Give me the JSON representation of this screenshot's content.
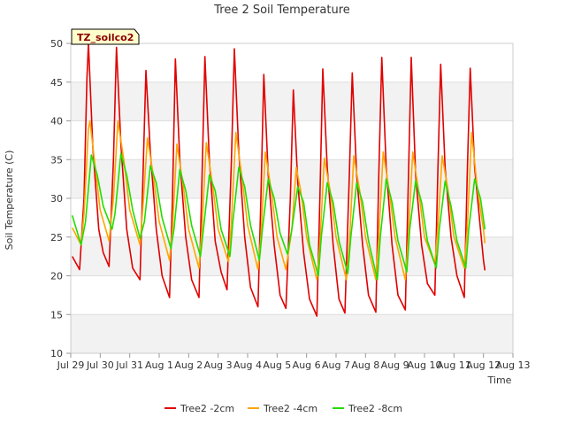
{
  "chart_data": {
    "type": "line",
    "title": "Tree 2 Soil Temperature",
    "xlabel": "Time",
    "ylabel": "Soil Temperature (C)",
    "ylim": [
      10,
      50
    ],
    "yticks": [
      10,
      15,
      20,
      25,
      30,
      35,
      40,
      45,
      50
    ],
    "x_tick_labels": [
      "Jul 29",
      "Jul 30",
      "Jul 31",
      "Aug 1",
      "Aug 2",
      "Aug 3",
      "Aug 4",
      "Aug 5",
      "Aug 6",
      "Aug 7",
      "Aug 8",
      "Aug 9",
      "Aug 10",
      "Aug 11",
      "Aug 12",
      "Aug 13"
    ],
    "x_range_days": [
      0,
      15
    ],
    "grid": "horizontal alternating bands",
    "annotation": "TZ_soilco2",
    "legend_position": "bottom-center",
    "series": [
      {
        "name": "Tree2 -2cm",
        "color": "#e00000",
        "points": [
          [
            0.05,
            22.5
          ],
          [
            0.3,
            20.8
          ],
          [
            0.45,
            30
          ],
          [
            0.55,
            45.5
          ],
          [
            0.6,
            50
          ],
          [
            0.75,
            36.5
          ],
          [
            0.95,
            26
          ],
          [
            1.1,
            23
          ],
          [
            1.3,
            21.2
          ],
          [
            1.45,
            35
          ],
          [
            1.55,
            49.5
          ],
          [
            1.7,
            37
          ],
          [
            1.9,
            26
          ],
          [
            2.1,
            21
          ],
          [
            2.35,
            19.5
          ],
          [
            2.45,
            33
          ],
          [
            2.55,
            46.5
          ],
          [
            2.7,
            36
          ],
          [
            2.9,
            26
          ],
          [
            3.1,
            20
          ],
          [
            3.35,
            17.2
          ],
          [
            3.45,
            30
          ],
          [
            3.55,
            48
          ],
          [
            3.7,
            35
          ],
          [
            3.9,
            25
          ],
          [
            4.1,
            19.5
          ],
          [
            4.35,
            17.2
          ],
          [
            4.45,
            32
          ],
          [
            4.55,
            48.3
          ],
          [
            4.7,
            35
          ],
          [
            4.9,
            24.5
          ],
          [
            5.1,
            20.5
          ],
          [
            5.3,
            18.2
          ],
          [
            5.45,
            35
          ],
          [
            5.55,
            49.3
          ],
          [
            5.7,
            36
          ],
          [
            5.9,
            25
          ],
          [
            6.1,
            18.5
          ],
          [
            6.35,
            16
          ],
          [
            6.45,
            30
          ],
          [
            6.55,
            46
          ],
          [
            6.7,
            33
          ],
          [
            6.9,
            24
          ],
          [
            7.1,
            17.5
          ],
          [
            7.3,
            15.8
          ],
          [
            7.45,
            30
          ],
          [
            7.55,
            44
          ],
          [
            7.7,
            32
          ],
          [
            7.9,
            23
          ],
          [
            8.1,
            17
          ],
          [
            8.35,
            14.8
          ],
          [
            8.45,
            30
          ],
          [
            8.55,
            46.7
          ],
          [
            8.7,
            34
          ],
          [
            8.9,
            24
          ],
          [
            9.1,
            17
          ],
          [
            9.3,
            15.2
          ],
          [
            9.45,
            33
          ],
          [
            9.55,
            46.2
          ],
          [
            9.7,
            33
          ],
          [
            9.9,
            24
          ],
          [
            10.1,
            17.5
          ],
          [
            10.35,
            15.3
          ],
          [
            10.45,
            33
          ],
          [
            10.55,
            48.2
          ],
          [
            10.7,
            34
          ],
          [
            10.9,
            24
          ],
          [
            11.1,
            17.5
          ],
          [
            11.35,
            15.6
          ],
          [
            11.45,
            32
          ],
          [
            11.55,
            48.2
          ],
          [
            11.7,
            33
          ],
          [
            11.9,
            24
          ],
          [
            12.1,
            19
          ],
          [
            12.35,
            17.5
          ],
          [
            12.45,
            33
          ],
          [
            12.55,
            47.3
          ],
          [
            12.7,
            34
          ],
          [
            12.9,
            25
          ],
          [
            13.1,
            20
          ],
          [
            13.35,
            17.2
          ],
          [
            13.45,
            33
          ],
          [
            13.55,
            46.8
          ],
          [
            13.7,
            34
          ],
          [
            13.9,
            26
          ],
          [
            14.0,
            22
          ],
          [
            14.05,
            20.7
          ]
        ]
      },
      {
        "name": "Tree2 -4cm",
        "color": "#ffa500",
        "points": [
          [
            0.05,
            26.2
          ],
          [
            0.35,
            24
          ],
          [
            0.45,
            28
          ],
          [
            0.6,
            39
          ],
          [
            0.65,
            40
          ],
          [
            0.8,
            35
          ],
          [
            1.0,
            28.5
          ],
          [
            1.3,
            24.5
          ],
          [
            1.45,
            30
          ],
          [
            1.6,
            40
          ],
          [
            1.8,
            35
          ],
          [
            2.0,
            28.5
          ],
          [
            2.35,
            24
          ],
          [
            2.45,
            29
          ],
          [
            2.6,
            37.8
          ],
          [
            2.8,
            33
          ],
          [
            3.0,
            27
          ],
          [
            3.35,
            22
          ],
          [
            3.45,
            26
          ],
          [
            3.6,
            37
          ],
          [
            3.8,
            32
          ],
          [
            4.0,
            26
          ],
          [
            4.35,
            21
          ],
          [
            4.45,
            26
          ],
          [
            4.6,
            37.2
          ],
          [
            4.8,
            32
          ],
          [
            5.0,
            26
          ],
          [
            5.35,
            21.8
          ],
          [
            5.45,
            27
          ],
          [
            5.6,
            38.5
          ],
          [
            5.8,
            33
          ],
          [
            6.0,
            26.5
          ],
          [
            6.35,
            20.8
          ],
          [
            6.45,
            25
          ],
          [
            6.6,
            36
          ],
          [
            6.8,
            31
          ],
          [
            7.0,
            25
          ],
          [
            7.3,
            20.8
          ],
          [
            7.5,
            26
          ],
          [
            7.65,
            34
          ],
          [
            7.8,
            31
          ],
          [
            8.0,
            25
          ],
          [
            8.35,
            19.5
          ],
          [
            8.45,
            24
          ],
          [
            8.6,
            35.2
          ],
          [
            8.8,
            31
          ],
          [
            9.0,
            25
          ],
          [
            9.35,
            19.5
          ],
          [
            9.45,
            24
          ],
          [
            9.6,
            35.5
          ],
          [
            9.8,
            31
          ],
          [
            10.0,
            25
          ],
          [
            10.35,
            19.5
          ],
          [
            10.45,
            25
          ],
          [
            10.6,
            36
          ],
          [
            10.8,
            31
          ],
          [
            11.0,
            25
          ],
          [
            11.35,
            19.5
          ],
          [
            11.45,
            25
          ],
          [
            11.6,
            36
          ],
          [
            11.8,
            31
          ],
          [
            12.0,
            25
          ],
          [
            12.35,
            21.5
          ],
          [
            12.45,
            26
          ],
          [
            12.6,
            35.5
          ],
          [
            12.8,
            31
          ],
          [
            13.0,
            25
          ],
          [
            13.35,
            21
          ],
          [
            13.45,
            26
          ],
          [
            13.6,
            38.5
          ],
          [
            13.8,
            31
          ],
          [
            14.0,
            26
          ],
          [
            14.05,
            24.2
          ]
        ]
      },
      {
        "name": "Tree2 -8cm",
        "color": "#22dd00",
        "points": [
          [
            0.05,
            27.8
          ],
          [
            0.35,
            24
          ],
          [
            0.5,
            27
          ],
          [
            0.7,
            35.6
          ],
          [
            0.9,
            33
          ],
          [
            1.1,
            29
          ],
          [
            1.4,
            26
          ],
          [
            1.5,
            28
          ],
          [
            1.7,
            35.8
          ],
          [
            1.9,
            33
          ],
          [
            2.1,
            28.5
          ],
          [
            2.35,
            24.8
          ],
          [
            2.5,
            27
          ],
          [
            2.7,
            34.2
          ],
          [
            2.9,
            32
          ],
          [
            3.1,
            27.5
          ],
          [
            3.4,
            23.5
          ],
          [
            3.5,
            26
          ],
          [
            3.7,
            33.7
          ],
          [
            3.9,
            31
          ],
          [
            4.1,
            26.5
          ],
          [
            4.4,
            22.5
          ],
          [
            4.5,
            26
          ],
          [
            4.7,
            33
          ],
          [
            4.9,
            31
          ],
          [
            5.1,
            26
          ],
          [
            5.4,
            22.5
          ],
          [
            5.5,
            27
          ],
          [
            5.7,
            34
          ],
          [
            5.9,
            31.5
          ],
          [
            6.1,
            26.5
          ],
          [
            6.4,
            22
          ],
          [
            6.5,
            26
          ],
          [
            6.7,
            32.5
          ],
          [
            6.9,
            30
          ],
          [
            7.1,
            25.5
          ],
          [
            7.35,
            22.8
          ],
          [
            7.5,
            26
          ],
          [
            7.7,
            31.5
          ],
          [
            7.9,
            29.5
          ],
          [
            8.1,
            24
          ],
          [
            8.4,
            20
          ],
          [
            8.5,
            25
          ],
          [
            8.7,
            32
          ],
          [
            8.9,
            29.5
          ],
          [
            9.1,
            24.5
          ],
          [
            9.4,
            20.3
          ],
          [
            9.5,
            25
          ],
          [
            9.7,
            32
          ],
          [
            9.9,
            29.5
          ],
          [
            10.1,
            24.5
          ],
          [
            10.4,
            19.5
          ],
          [
            10.5,
            25
          ],
          [
            10.7,
            32.5
          ],
          [
            10.9,
            29.5
          ],
          [
            11.1,
            24.5
          ],
          [
            11.4,
            20.5
          ],
          [
            11.5,
            26
          ],
          [
            11.7,
            32.3
          ],
          [
            11.9,
            29.5
          ],
          [
            12.1,
            24.5
          ],
          [
            12.4,
            21
          ],
          [
            12.5,
            26
          ],
          [
            12.7,
            32.2
          ],
          [
            12.9,
            29
          ],
          [
            13.1,
            24.5
          ],
          [
            13.4,
            21
          ],
          [
            13.5,
            26
          ],
          [
            13.7,
            32.5
          ],
          [
            13.9,
            30
          ],
          [
            14.05,
            26
          ]
        ]
      }
    ]
  }
}
